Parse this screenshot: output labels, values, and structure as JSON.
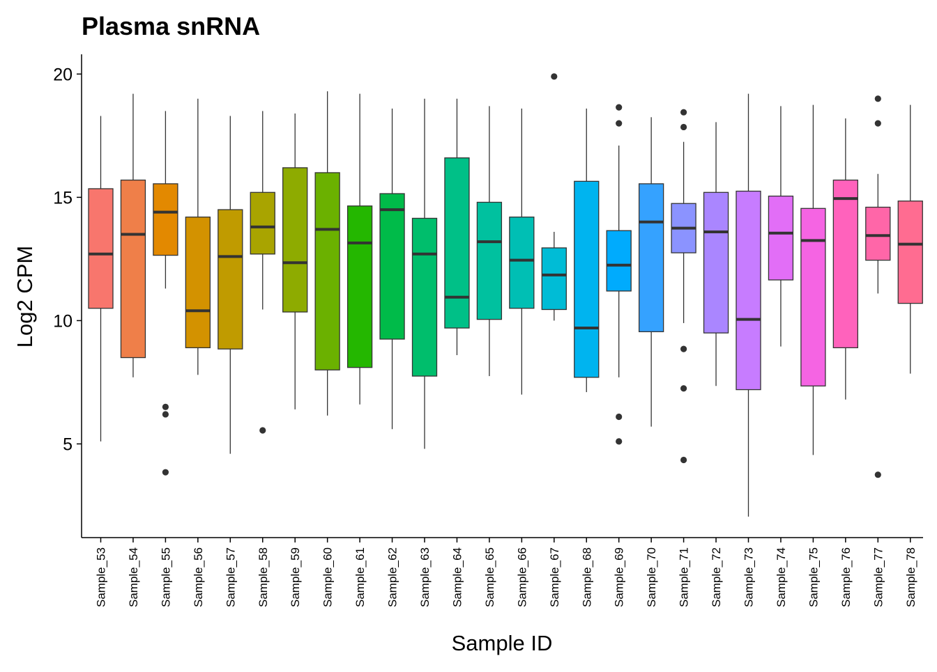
{
  "chart_data": {
    "type": "boxplot",
    "title": "Plasma snRNA",
    "xlabel": "Sample ID",
    "ylabel": "Log2 CPM",
    "ylim": [
      1.2,
      20.8
    ],
    "yticks": [
      5,
      10,
      15,
      20
    ],
    "grid": false,
    "legend": "none",
    "series": [
      {
        "category": "Sample_53",
        "color": "#F8766D",
        "whisker_low": 5.1,
        "q1": 10.5,
        "median": 12.7,
        "q3": 15.35,
        "whisker_high": 18.3,
        "outliers": []
      },
      {
        "category": "Sample_54",
        "color": "#EF7F49",
        "whisker_low": 7.7,
        "q1": 8.5,
        "median": 13.5,
        "q3": 15.7,
        "whisker_high": 19.2,
        "outliers": []
      },
      {
        "category": "Sample_55",
        "color": "#E38900",
        "whisker_low": 11.3,
        "q1": 12.65,
        "median": 14.4,
        "q3": 15.55,
        "whisker_high": 18.5,
        "outliers": [
          6.5,
          6.2,
          3.85
        ]
      },
      {
        "category": "Sample_56",
        "color": "#D39200",
        "whisker_low": 7.8,
        "q1": 8.9,
        "median": 10.4,
        "q3": 14.2,
        "whisker_high": 19.0,
        "outliers": []
      },
      {
        "category": "Sample_57",
        "color": "#C09B00",
        "whisker_low": 4.6,
        "q1": 8.85,
        "median": 12.6,
        "q3": 14.5,
        "whisker_high": 18.3,
        "outliers": []
      },
      {
        "category": "Sample_58",
        "color": "#A9A400",
        "whisker_low": 10.45,
        "q1": 12.7,
        "median": 13.8,
        "q3": 15.2,
        "whisker_high": 18.5,
        "outliers": [
          5.55
        ]
      },
      {
        "category": "Sample_59",
        "color": "#8EAB00",
        "whisker_low": 6.4,
        "q1": 10.35,
        "median": 12.35,
        "q3": 16.2,
        "whisker_high": 18.4,
        "outliers": []
      },
      {
        "category": "Sample_60",
        "color": "#6BB100",
        "whisker_low": 6.15,
        "q1": 8.0,
        "median": 13.7,
        "q3": 16.0,
        "whisker_high": 19.3,
        "outliers": []
      },
      {
        "category": "Sample_61",
        "color": "#24B700",
        "whisker_low": 6.6,
        "q1": 8.1,
        "median": 13.15,
        "q3": 14.65,
        "whisker_high": 19.2,
        "outliers": []
      },
      {
        "category": "Sample_62",
        "color": "#00BB49",
        "whisker_low": 5.6,
        "q1": 9.25,
        "median": 14.5,
        "q3": 15.15,
        "whisker_high": 18.6,
        "outliers": []
      },
      {
        "category": "Sample_63",
        "color": "#00BE6C",
        "whisker_low": 4.8,
        "q1": 7.75,
        "median": 12.7,
        "q3": 14.15,
        "whisker_high": 19.0,
        "outliers": []
      },
      {
        "category": "Sample_64",
        "color": "#00C087",
        "whisker_low": 8.6,
        "q1": 9.7,
        "median": 10.95,
        "q3": 16.6,
        "whisker_high": 19.0,
        "outliers": []
      },
      {
        "category": "Sample_65",
        "color": "#00C19F",
        "whisker_low": 7.75,
        "q1": 10.05,
        "median": 13.2,
        "q3": 14.8,
        "whisker_high": 18.7,
        "outliers": []
      },
      {
        "category": "Sample_66",
        "color": "#00BFB4",
        "whisker_low": 7.0,
        "q1": 10.5,
        "median": 12.45,
        "q3": 14.2,
        "whisker_high": 18.6,
        "outliers": []
      },
      {
        "category": "Sample_67",
        "color": "#00BCD6",
        "whisker_low": 10.0,
        "q1": 10.45,
        "median": 11.85,
        "q3": 12.95,
        "whisker_high": 13.6,
        "outliers": [
          19.9
        ]
      },
      {
        "category": "Sample_68",
        "color": "#00B4EF",
        "whisker_low": 7.1,
        "q1": 7.7,
        "median": 9.7,
        "q3": 15.65,
        "whisker_high": 18.6,
        "outliers": []
      },
      {
        "category": "Sample_69",
        "color": "#00ABFD",
        "whisker_low": 7.7,
        "q1": 11.2,
        "median": 12.25,
        "q3": 13.65,
        "whisker_high": 17.1,
        "outliers": [
          18.65,
          18.0,
          6.1,
          5.1
        ]
      },
      {
        "category": "Sample_70",
        "color": "#35A2FF",
        "whisker_low": 5.7,
        "q1": 9.55,
        "median": 14.0,
        "q3": 15.55,
        "whisker_high": 18.25,
        "outliers": []
      },
      {
        "category": "Sample_71",
        "color": "#8B93FF",
        "whisker_low": 9.9,
        "q1": 12.75,
        "median": 13.75,
        "q3": 14.75,
        "whisker_high": 17.25,
        "outliers": [
          18.45,
          17.85,
          8.85,
          7.25,
          4.35
        ]
      },
      {
        "category": "Sample_72",
        "color": "#AA86FF",
        "whisker_low": 7.35,
        "q1": 9.5,
        "median": 13.6,
        "q3": 15.2,
        "whisker_high": 18.05,
        "outliers": []
      },
      {
        "category": "Sample_73",
        "color": "#C77CFF",
        "whisker_low": 2.05,
        "q1": 7.2,
        "median": 10.05,
        "q3": 15.25,
        "whisker_high": 19.2,
        "outliers": []
      },
      {
        "category": "Sample_74",
        "color": "#E26EF7",
        "whisker_low": 8.95,
        "q1": 11.65,
        "median": 13.55,
        "q3": 15.05,
        "whisker_high": 18.7,
        "outliers": []
      },
      {
        "category": "Sample_75",
        "color": "#F564E3",
        "whisker_low": 4.55,
        "q1": 7.35,
        "median": 13.25,
        "q3": 14.55,
        "whisker_high": 18.75,
        "outliers": []
      },
      {
        "category": "Sample_76",
        "color": "#FF62BC",
        "whisker_low": 6.8,
        "q1": 8.9,
        "median": 14.95,
        "q3": 15.7,
        "whisker_high": 18.2,
        "outliers": []
      },
      {
        "category": "Sample_77",
        "color": "#FF66A8",
        "whisker_low": 11.1,
        "q1": 12.45,
        "median": 13.45,
        "q3": 14.6,
        "whisker_high": 15.95,
        "outliers": [
          19.0,
          18.0,
          3.75
        ]
      },
      {
        "category": "Sample_78",
        "color": "#FF6C91",
        "whisker_low": 7.85,
        "q1": 10.7,
        "median": 13.1,
        "q3": 14.85,
        "whisker_high": 18.75,
        "outliers": []
      }
    ]
  }
}
